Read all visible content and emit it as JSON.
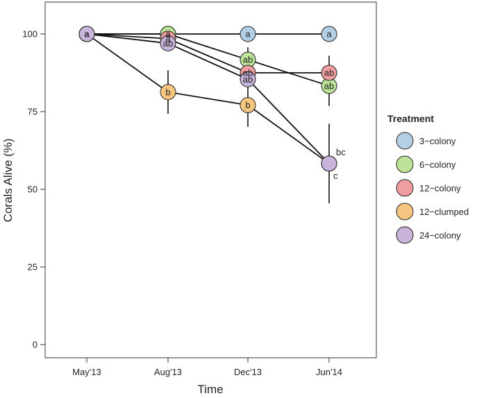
{
  "chart_data": {
    "type": "line",
    "xlabel": "Time",
    "ylabel": "Corals Alive (%)",
    "ylim": [
      0,
      110
    ],
    "yticks": [
      0,
      25,
      50,
      75,
      100
    ],
    "categories": [
      "May'13",
      "Aug'13",
      "Dec'13",
      "Jun'14"
    ],
    "legend": {
      "title": "Treatment",
      "position": "right"
    },
    "series": [
      {
        "name": "3−colony",
        "color": "#b3cfe6",
        "values": [
          100,
          100,
          100,
          100
        ],
        "err": [
          0,
          0,
          0,
          0
        ],
        "labels": [
          "a",
          "a",
          "a",
          "a"
        ]
      },
      {
        "name": "6−colony",
        "color": "#bce397",
        "values": [
          100,
          100,
          91.7,
          83.3
        ],
        "err": [
          0,
          0,
          4,
          6.5
        ],
        "labels": [
          "a",
          "a",
          "ab",
          "ab"
        ]
      },
      {
        "name": "12−colony",
        "color": "#ef9d9f",
        "values": [
          100,
          98.5,
          87.5,
          87.5
        ],
        "err": [
          0,
          0,
          4,
          5.5
        ],
        "labels": [
          "a",
          "a",
          "ab",
          "ab"
        ]
      },
      {
        "name": "12−clumped",
        "color": "#f6c57f",
        "values": [
          100,
          81.3,
          77.1,
          58.3
        ],
        "err": [
          0,
          7,
          7,
          0
        ],
        "labels": [
          "a",
          "b",
          "b",
          "bc"
        ]
      },
      {
        "name": "24−colony",
        "color": "#c8b3db",
        "values": [
          100,
          97,
          85.4,
          58.3
        ],
        "err": [
          0,
          0,
          0,
          12.8
        ],
        "labels": [
          "a",
          "ab",
          "ab",
          "c"
        ]
      }
    ]
  }
}
